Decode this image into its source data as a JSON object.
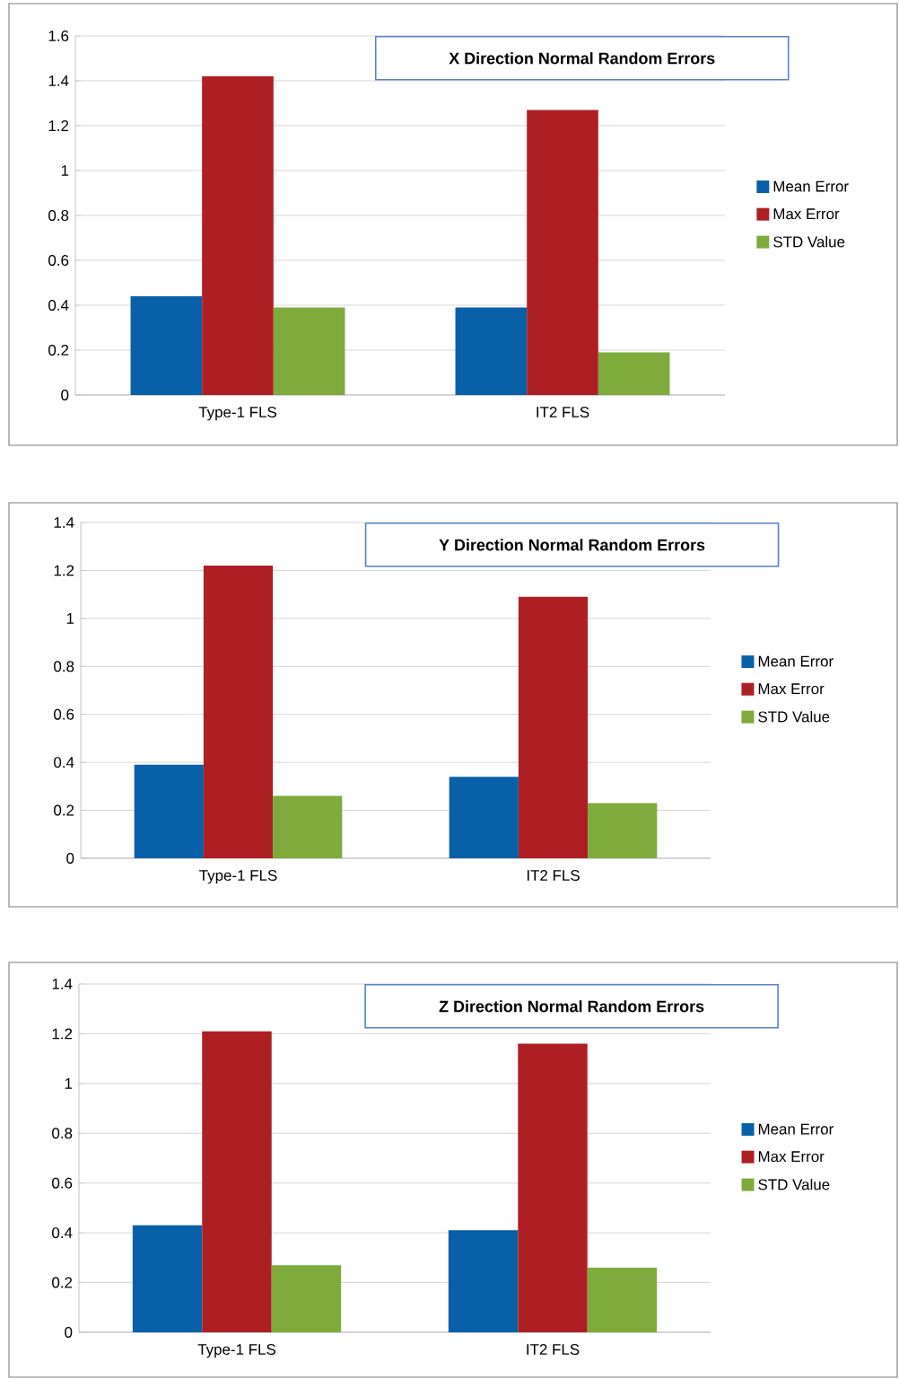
{
  "chart_data": [
    {
      "type": "bar",
      "title": "X Direction Normal Random Errors",
      "categories": [
        "Type-1 FLS",
        "IT2 FLS"
      ],
      "series": [
        {
          "name": "Mean Error",
          "color": "#0860a8",
          "values": [
            0.44,
            0.39
          ]
        },
        {
          "name": "Max Error",
          "color": "#ae1f24",
          "values": [
            1.42,
            1.27
          ]
        },
        {
          "name": "STD Value",
          "color": "#7eab3c",
          "values": [
            0.39,
            0.19
          ]
        }
      ],
      "ylim": [
        0,
        1.6
      ],
      "yticks": [
        0,
        0.2,
        0.4,
        0.6,
        0.8,
        1,
        1.2,
        1.4,
        1.6
      ],
      "grid": "y",
      "legend": "right"
    },
    {
      "type": "bar",
      "title": "Y Direction Normal Random Errors",
      "categories": [
        "Type-1 FLS",
        "IT2 FLS"
      ],
      "series": [
        {
          "name": "Mean Error",
          "color": "#0860a8",
          "values": [
            0.39,
            0.34
          ]
        },
        {
          "name": "Max Error",
          "color": "#ae1f24",
          "values": [
            1.22,
            1.09
          ]
        },
        {
          "name": "STD Value",
          "color": "#7eab3c",
          "values": [
            0.26,
            0.23
          ]
        }
      ],
      "ylim": [
        0,
        1.4
      ],
      "yticks": [
        0,
        0.2,
        0.4,
        0.6,
        0.8,
        1,
        1.2,
        1.4
      ],
      "grid": "y",
      "legend": "right"
    },
    {
      "type": "bar",
      "title": "Z Direction Normal Random Errors",
      "categories": [
        "Type-1 FLS",
        "IT2 FLS"
      ],
      "series": [
        {
          "name": "Mean Error",
          "color": "#0860a8",
          "values": [
            0.43,
            0.41
          ]
        },
        {
          "name": "Max Error",
          "color": "#ae1f24",
          "values": [
            1.21,
            1.16
          ]
        },
        {
          "name": "STD Value",
          "color": "#7eab3c",
          "values": [
            0.27,
            0.26
          ]
        }
      ],
      "ylim": [
        0,
        1.4
      ],
      "yticks": [
        0,
        0.2,
        0.4,
        0.6,
        0.8,
        1,
        1.2,
        1.4
      ],
      "grid": "y",
      "legend": "right"
    }
  ]
}
